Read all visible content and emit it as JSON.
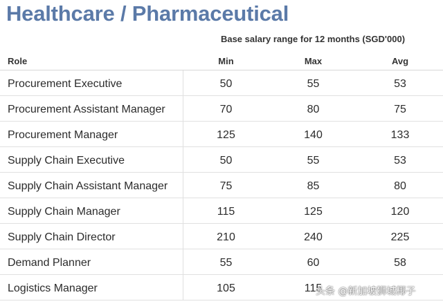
{
  "title": "Healthcare / Pharmaceutical",
  "subtitle": "Base salary range for 12 months (SGD'000)",
  "headers": {
    "role": "Role",
    "min": "Min",
    "max": "Max",
    "avg": "Avg"
  },
  "rows": [
    {
      "role": "Procurement Executive",
      "min": "50",
      "max": "55",
      "avg": "53"
    },
    {
      "role": "Procurement Assistant Manager",
      "min": "70",
      "max": "80",
      "avg": "75"
    },
    {
      "role": "Procurement Manager",
      "min": "125",
      "max": "140",
      "avg": "133"
    },
    {
      "role": "Supply Chain Executive",
      "min": "50",
      "max": "55",
      "avg": "53"
    },
    {
      "role": "Supply Chain Assistant Manager",
      "min": "75",
      "max": "85",
      "avg": "80"
    },
    {
      "role": "Supply Chain Manager",
      "min": "115",
      "max": "125",
      "avg": "120"
    },
    {
      "role": "Supply Chain Director",
      "min": "210",
      "max": "240",
      "avg": "225"
    },
    {
      "role": "Demand Planner",
      "min": "55",
      "max": "60",
      "avg": "58"
    },
    {
      "role": "Logistics Manager",
      "min": "105",
      "max": "115",
      "avg": ""
    }
  ],
  "watermark": "头条 @新加坡狮城椰子",
  "colors": {
    "title": "#5b7aa8",
    "text": "#2b2b2b",
    "rule": "#e0e0e0"
  }
}
